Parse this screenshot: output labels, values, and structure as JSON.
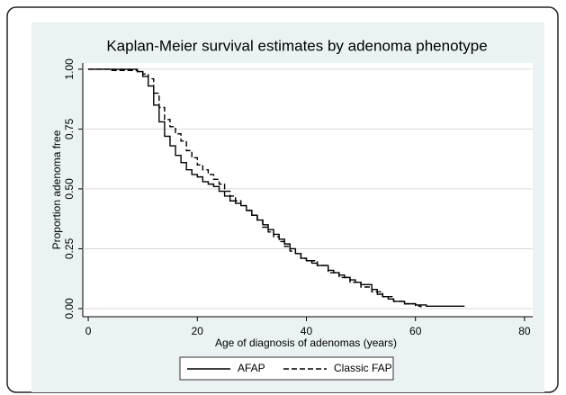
{
  "chart_data": {
    "type": "step",
    "title": "Kaplan-Meier survival estimates by adenoma phenotype",
    "x_label": "Age of diagnosis of adenomas (years)",
    "y_label": "Proportion adenoma free",
    "xlim": [
      -1,
      81.5
    ],
    "ylim": [
      -0.034,
      1.026
    ],
    "xticks": [
      0,
      20,
      40,
      60,
      80
    ],
    "yticks": [
      {
        "value": 0,
        "label": "0.00"
      },
      {
        "value": 0.25,
        "label": "0.25"
      },
      {
        "value": 0.5,
        "label": "0.50"
      },
      {
        "value": 0.75,
        "label": "0.75"
      },
      {
        "value": 1,
        "label": "1.00"
      }
    ],
    "grid": true,
    "series": [
      {
        "name": "AFAP",
        "color": "#000000",
        "dash": "solid",
        "x": [
          0,
          5,
          9,
          10,
          11,
          12,
          13,
          14,
          15,
          16,
          17,
          18,
          19,
          20,
          21,
          22,
          23,
          24,
          25,
          26,
          27,
          28,
          29,
          30,
          31,
          32,
          33,
          34,
          35,
          36,
          37,
          38,
          39,
          40,
          41,
          42,
          44,
          45,
          46,
          47,
          48,
          49,
          50,
          52,
          53,
          54,
          55,
          56,
          58,
          60,
          62,
          69
        ],
        "values": [
          1,
          1,
          0.99,
          0.97,
          0.93,
          0.85,
          0.78,
          0.72,
          0.68,
          0.64,
          0.61,
          0.58,
          0.56,
          0.55,
          0.53,
          0.52,
          0.51,
          0.49,
          0.47,
          0.45,
          0.44,
          0.43,
          0.41,
          0.39,
          0.37,
          0.35,
          0.33,
          0.31,
          0.29,
          0.27,
          0.25,
          0.23,
          0.21,
          0.2,
          0.19,
          0.18,
          0.16,
          0.15,
          0.14,
          0.13,
          0.12,
          0.11,
          0.1,
          0.08,
          0.06,
          0.05,
          0.04,
          0.03,
          0.02,
          0.015,
          0.01,
          0.01
        ]
      },
      {
        "name": "Classic FAP",
        "color": "#000000",
        "dash": "dashed",
        "x": [
          0,
          4,
          9,
          10,
          11,
          12,
          13,
          14,
          15,
          16,
          17,
          18,
          19,
          20,
          21,
          22,
          23,
          24,
          25,
          26,
          27,
          28,
          29,
          30,
          31,
          32,
          33,
          34,
          35,
          36,
          37,
          38,
          39,
          40,
          42,
          44,
          46,
          48,
          50,
          52,
          54,
          56,
          58,
          60,
          61
        ],
        "values": [
          1,
          0.995,
          0.99,
          0.98,
          0.96,
          0.9,
          0.84,
          0.79,
          0.76,
          0.73,
          0.7,
          0.66,
          0.63,
          0.6,
          0.58,
          0.56,
          0.54,
          0.52,
          0.49,
          0.47,
          0.45,
          0.43,
          0.41,
          0.39,
          0.37,
          0.34,
          0.32,
          0.3,
          0.28,
          0.26,
          0.24,
          0.23,
          0.21,
          0.2,
          0.18,
          0.15,
          0.13,
          0.11,
          0.09,
          0.07,
          0.05,
          0.03,
          0.02,
          0.01,
          0.005
        ]
      }
    ]
  }
}
